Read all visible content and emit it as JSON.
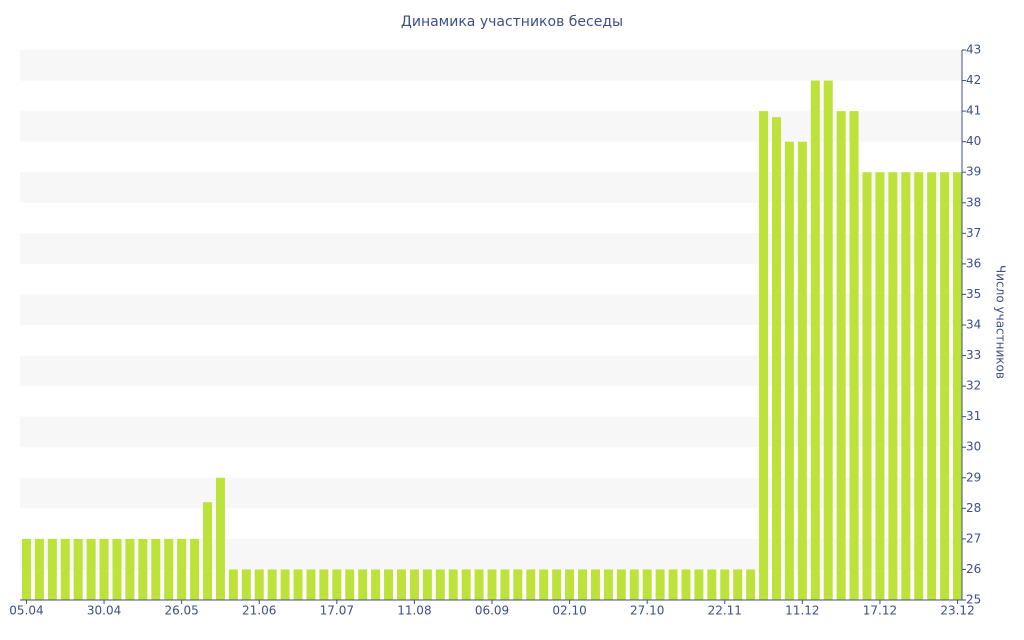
{
  "chart_data": {
    "type": "bar",
    "title": "Динамика участников беседы",
    "y_axis_label": "Число участников",
    "categories": [
      "05.04",
      null,
      null,
      null,
      null,
      null,
      "30.04",
      null,
      null,
      null,
      null,
      null,
      "26.05",
      null,
      null,
      null,
      null,
      null,
      "21.06",
      null,
      null,
      null,
      null,
      null,
      "17.07",
      null,
      null,
      null,
      null,
      null,
      "11.08",
      null,
      null,
      null,
      null,
      null,
      "06.09",
      null,
      null,
      null,
      null,
      null,
      "02.10",
      null,
      null,
      null,
      null,
      null,
      "27.10",
      null,
      null,
      null,
      null,
      null,
      "22.11",
      null,
      null,
      null,
      null,
      null,
      "11.12",
      null,
      null,
      null,
      null,
      null,
      "17.12",
      null,
      null,
      null,
      null,
      null,
      "23.12"
    ],
    "values": [
      27,
      27,
      27,
      27,
      27,
      27,
      27,
      27,
      27,
      27,
      27,
      27,
      27,
      27,
      28.2,
      29,
      26,
      26,
      26,
      26,
      26,
      26,
      26,
      26,
      26,
      26,
      26,
      26,
      26,
      26,
      26,
      26,
      26,
      26,
      26,
      26,
      26,
      26,
      26,
      26,
      26,
      26,
      26,
      26,
      26,
      26,
      26,
      26,
      26,
      26,
      26,
      26,
      26,
      26,
      26,
      26,
      26,
      41,
      40.8,
      40,
      40,
      42,
      42,
      41,
      41,
      39,
      39,
      39,
      39,
      39,
      39,
      39,
      39
    ],
    "color": "#bde23a",
    "ylim": [
      25,
      43
    ],
    "yticks": [
      25,
      26,
      27,
      28,
      29,
      30,
      31,
      32,
      33,
      34,
      35,
      36,
      37,
      38,
      39,
      40,
      41,
      42,
      43
    ],
    "grid": true,
    "y_axis_side": "right"
  }
}
